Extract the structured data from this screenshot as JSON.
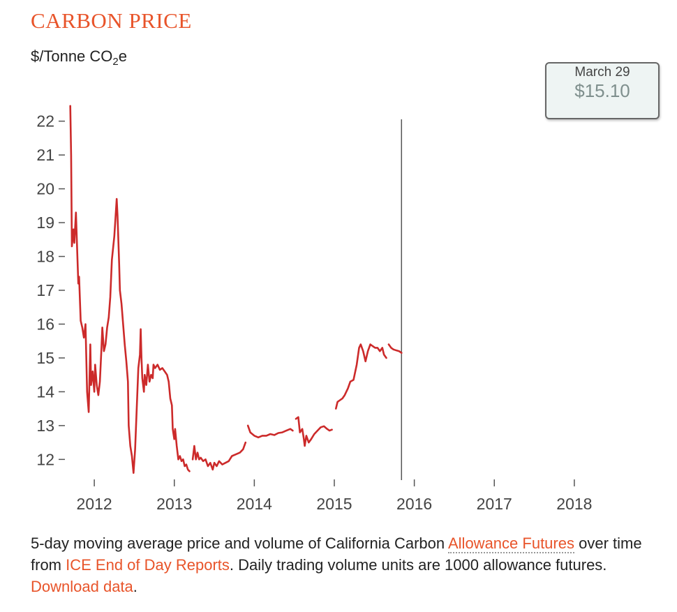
{
  "header": {
    "title": "CARBON PRICE",
    "unit_prefix": "$/Tonne CO",
    "unit_sub": "2",
    "unit_suffix": "e"
  },
  "tooltip": {
    "date": "March 29",
    "value": "$15.10"
  },
  "caption": {
    "text1": "5-day moving average price and volume of California Carbon ",
    "link1": "Allowance Futures",
    "text2": " over time from ",
    "link2": "ICE End of Day Reports",
    "text3": ". Daily trading volume units are 1000 allowance futures. ",
    "link3": "Download data",
    "text4": "."
  },
  "colors": {
    "title": "#e8542a",
    "line": "#cc2a2a",
    "axis": "#555555",
    "link": "#e8542a"
  },
  "chart_data": {
    "type": "line",
    "title": "CARBON PRICE",
    "ylabel": "$/Tonne CO2e",
    "xlabel": "",
    "ylim": [
      11.45,
      22.9
    ],
    "xlim": [
      2011.65,
      2018.35
    ],
    "yticks": [
      12,
      13,
      14,
      15,
      16,
      17,
      18,
      19,
      20,
      21,
      22
    ],
    "xticks": [
      2012,
      2013,
      2014,
      2015,
      2016,
      2017,
      2018
    ],
    "grid": false,
    "series": [
      {
        "segments": [
          [
            [
              2011.7,
              22.45
            ],
            [
              2011.71,
              21.0
            ],
            [
              2011.72,
              18.3
            ],
            [
              2011.74,
              18.8
            ],
            [
              2011.75,
              18.4
            ],
            [
              2011.77,
              19.3
            ],
            [
              2011.78,
              18.6
            ],
            [
              2011.8,
              17.2
            ],
            [
              2011.81,
              17.4
            ],
            [
              2011.83,
              16.1
            ],
            [
              2011.85,
              15.9
            ],
            [
              2011.87,
              15.6
            ],
            [
              2011.89,
              16.0
            ],
            [
              2011.91,
              14.0
            ],
            [
              2011.93,
              13.4
            ],
            [
              2011.95,
              15.4
            ],
            [
              2011.96,
              14.2
            ],
            [
              2011.98,
              14.6
            ],
            [
              2012.0,
              14.0
            ],
            [
              2012.01,
              14.8
            ],
            [
              2012.03,
              14.2
            ],
            [
              2012.05,
              13.9
            ],
            [
              2012.07,
              14.3
            ],
            [
              2012.09,
              15.3
            ],
            [
              2012.1,
              15.9
            ],
            [
              2012.12,
              15.2
            ],
            [
              2012.14,
              15.4
            ],
            [
              2012.16,
              15.9
            ],
            [
              2012.18,
              16.2
            ],
            [
              2012.2,
              16.8
            ],
            [
              2012.22,
              17.9
            ],
            [
              2012.25,
              18.6
            ],
            [
              2012.28,
              19.7
            ],
            [
              2012.29,
              19.2
            ],
            [
              2012.31,
              17.8
            ],
            [
              2012.32,
              17.0
            ],
            [
              2012.34,
              16.6
            ],
            [
              2012.36,
              16.0
            ],
            [
              2012.38,
              15.4
            ],
            [
              2012.4,
              14.9
            ],
            [
              2012.42,
              14.3
            ],
            [
              2012.43,
              13.0
            ],
            [
              2012.45,
              12.4
            ],
            [
              2012.47,
              12.1
            ],
            [
              2012.49,
              11.6
            ],
            [
              2012.51,
              12.3
            ],
            [
              2012.53,
              13.5
            ],
            [
              2012.55,
              14.7
            ],
            [
              2012.57,
              15.1
            ],
            [
              2012.58,
              15.85
            ],
            [
              2012.59,
              15.0
            ],
            [
              2012.6,
              14.4
            ],
            [
              2012.62,
              14.0
            ],
            [
              2012.63,
              14.5
            ],
            [
              2012.65,
              14.2
            ],
            [
              2012.67,
              14.8
            ],
            [
              2012.69,
              14.3
            ],
            [
              2012.71,
              14.5
            ],
            [
              2012.73,
              14.4
            ],
            [
              2012.74,
              14.8
            ],
            [
              2012.76,
              14.7
            ],
            [
              2012.79,
              14.8
            ],
            [
              2012.82,
              14.65
            ],
            [
              2012.85,
              14.7
            ],
            [
              2012.88,
              14.6
            ],
            [
              2012.91,
              14.5
            ],
            [
              2012.93,
              14.3
            ],
            [
              2012.95,
              13.8
            ],
            [
              2012.97,
              13.6
            ],
            [
              2012.98,
              12.9
            ],
            [
              2013.0,
              12.6
            ],
            [
              2013.01,
              12.9
            ],
            [
              2013.03,
              12.4
            ],
            [
              2013.05,
              12.0
            ],
            [
              2013.07,
              12.1
            ],
            [
              2013.09,
              11.95
            ],
            [
              2013.11,
              12.0
            ],
            [
              2013.13,
              11.8
            ],
            [
              2013.15,
              11.85
            ],
            [
              2013.17,
              11.7
            ],
            [
              2013.19,
              11.65
            ]
          ],
          [
            [
              2013.23,
              12.0
            ],
            [
              2013.25,
              12.4
            ],
            [
              2013.27,
              12.0
            ],
            [
              2013.29,
              12.2
            ],
            [
              2013.31,
              12.0
            ],
            [
              2013.33,
              12.05
            ],
            [
              2013.36,
              11.95
            ],
            [
              2013.39,
              12.0
            ],
            [
              2013.42,
              11.8
            ],
            [
              2013.45,
              11.9
            ],
            [
              2013.48,
              11.7
            ],
            [
              2013.5,
              11.9
            ],
            [
              2013.53,
              11.8
            ],
            [
              2013.56,
              11.95
            ],
            [
              2013.6,
              11.85
            ],
            [
              2013.64,
              11.9
            ],
            [
              2013.68,
              11.95
            ],
            [
              2013.72,
              12.1
            ],
            [
              2013.77,
              12.15
            ],
            [
              2013.82,
              12.2
            ],
            [
              2013.86,
              12.3
            ],
            [
              2013.89,
              12.5
            ]
          ],
          [
            [
              2013.92,
              13.0
            ],
            [
              2013.95,
              12.8
            ],
            [
              2014.0,
              12.7
            ],
            [
              2014.05,
              12.65
            ],
            [
              2014.1,
              12.7
            ],
            [
              2014.15,
              12.7
            ],
            [
              2014.2,
              12.75
            ],
            [
              2014.25,
              12.72
            ],
            [
              2014.3,
              12.78
            ],
            [
              2014.35,
              12.8
            ],
            [
              2014.4,
              12.85
            ],
            [
              2014.45,
              12.9
            ],
            [
              2014.48,
              12.85
            ]
          ],
          [
            [
              2014.52,
              13.2
            ],
            [
              2014.55,
              13.25
            ],
            [
              2014.57,
              12.8
            ],
            [
              2014.6,
              12.9
            ],
            [
              2014.62,
              12.6
            ],
            [
              2014.63,
              12.4
            ],
            [
              2014.65,
              12.7
            ],
            [
              2014.68,
              12.5
            ],
            [
              2014.71,
              12.6
            ],
            [
              2014.75,
              12.75
            ],
            [
              2014.79,
              12.85
            ],
            [
              2014.83,
              12.95
            ],
            [
              2014.87,
              12.98
            ],
            [
              2014.91,
              12.9
            ],
            [
              2014.94,
              12.85
            ],
            [
              2014.97,
              12.88
            ]
          ],
          [
            [
              2015.02,
              13.5
            ],
            [
              2015.04,
              13.7
            ],
            [
              2015.07,
              13.75
            ],
            [
              2015.1,
              13.8
            ],
            [
              2015.13,
              13.9
            ],
            [
              2015.17,
              14.1
            ],
            [
              2015.2,
              14.3
            ],
            [
              2015.24,
              14.35
            ],
            [
              2015.28,
              14.8
            ],
            [
              2015.31,
              15.3
            ],
            [
              2015.33,
              15.4
            ],
            [
              2015.36,
              15.2
            ],
            [
              2015.39,
              14.9
            ],
            [
              2015.42,
              15.2
            ],
            [
              2015.45,
              15.4
            ],
            [
              2015.48,
              15.35
            ],
            [
              2015.51,
              15.3
            ],
            [
              2015.54,
              15.3
            ],
            [
              2015.57,
              15.2
            ],
            [
              2015.6,
              15.3
            ],
            [
              2015.62,
              15.1
            ],
            [
              2015.65,
              15.0
            ]
          ],
          [
            [
              2015.68,
              15.4
            ],
            [
              2015.71,
              15.3
            ],
            [
              2015.74,
              15.25
            ],
            [
              2015.78,
              15.22
            ],
            [
              2015.81,
              15.2
            ],
            [
              2015.84,
              15.15
            ]
          ]
        ]
      }
    ]
  }
}
